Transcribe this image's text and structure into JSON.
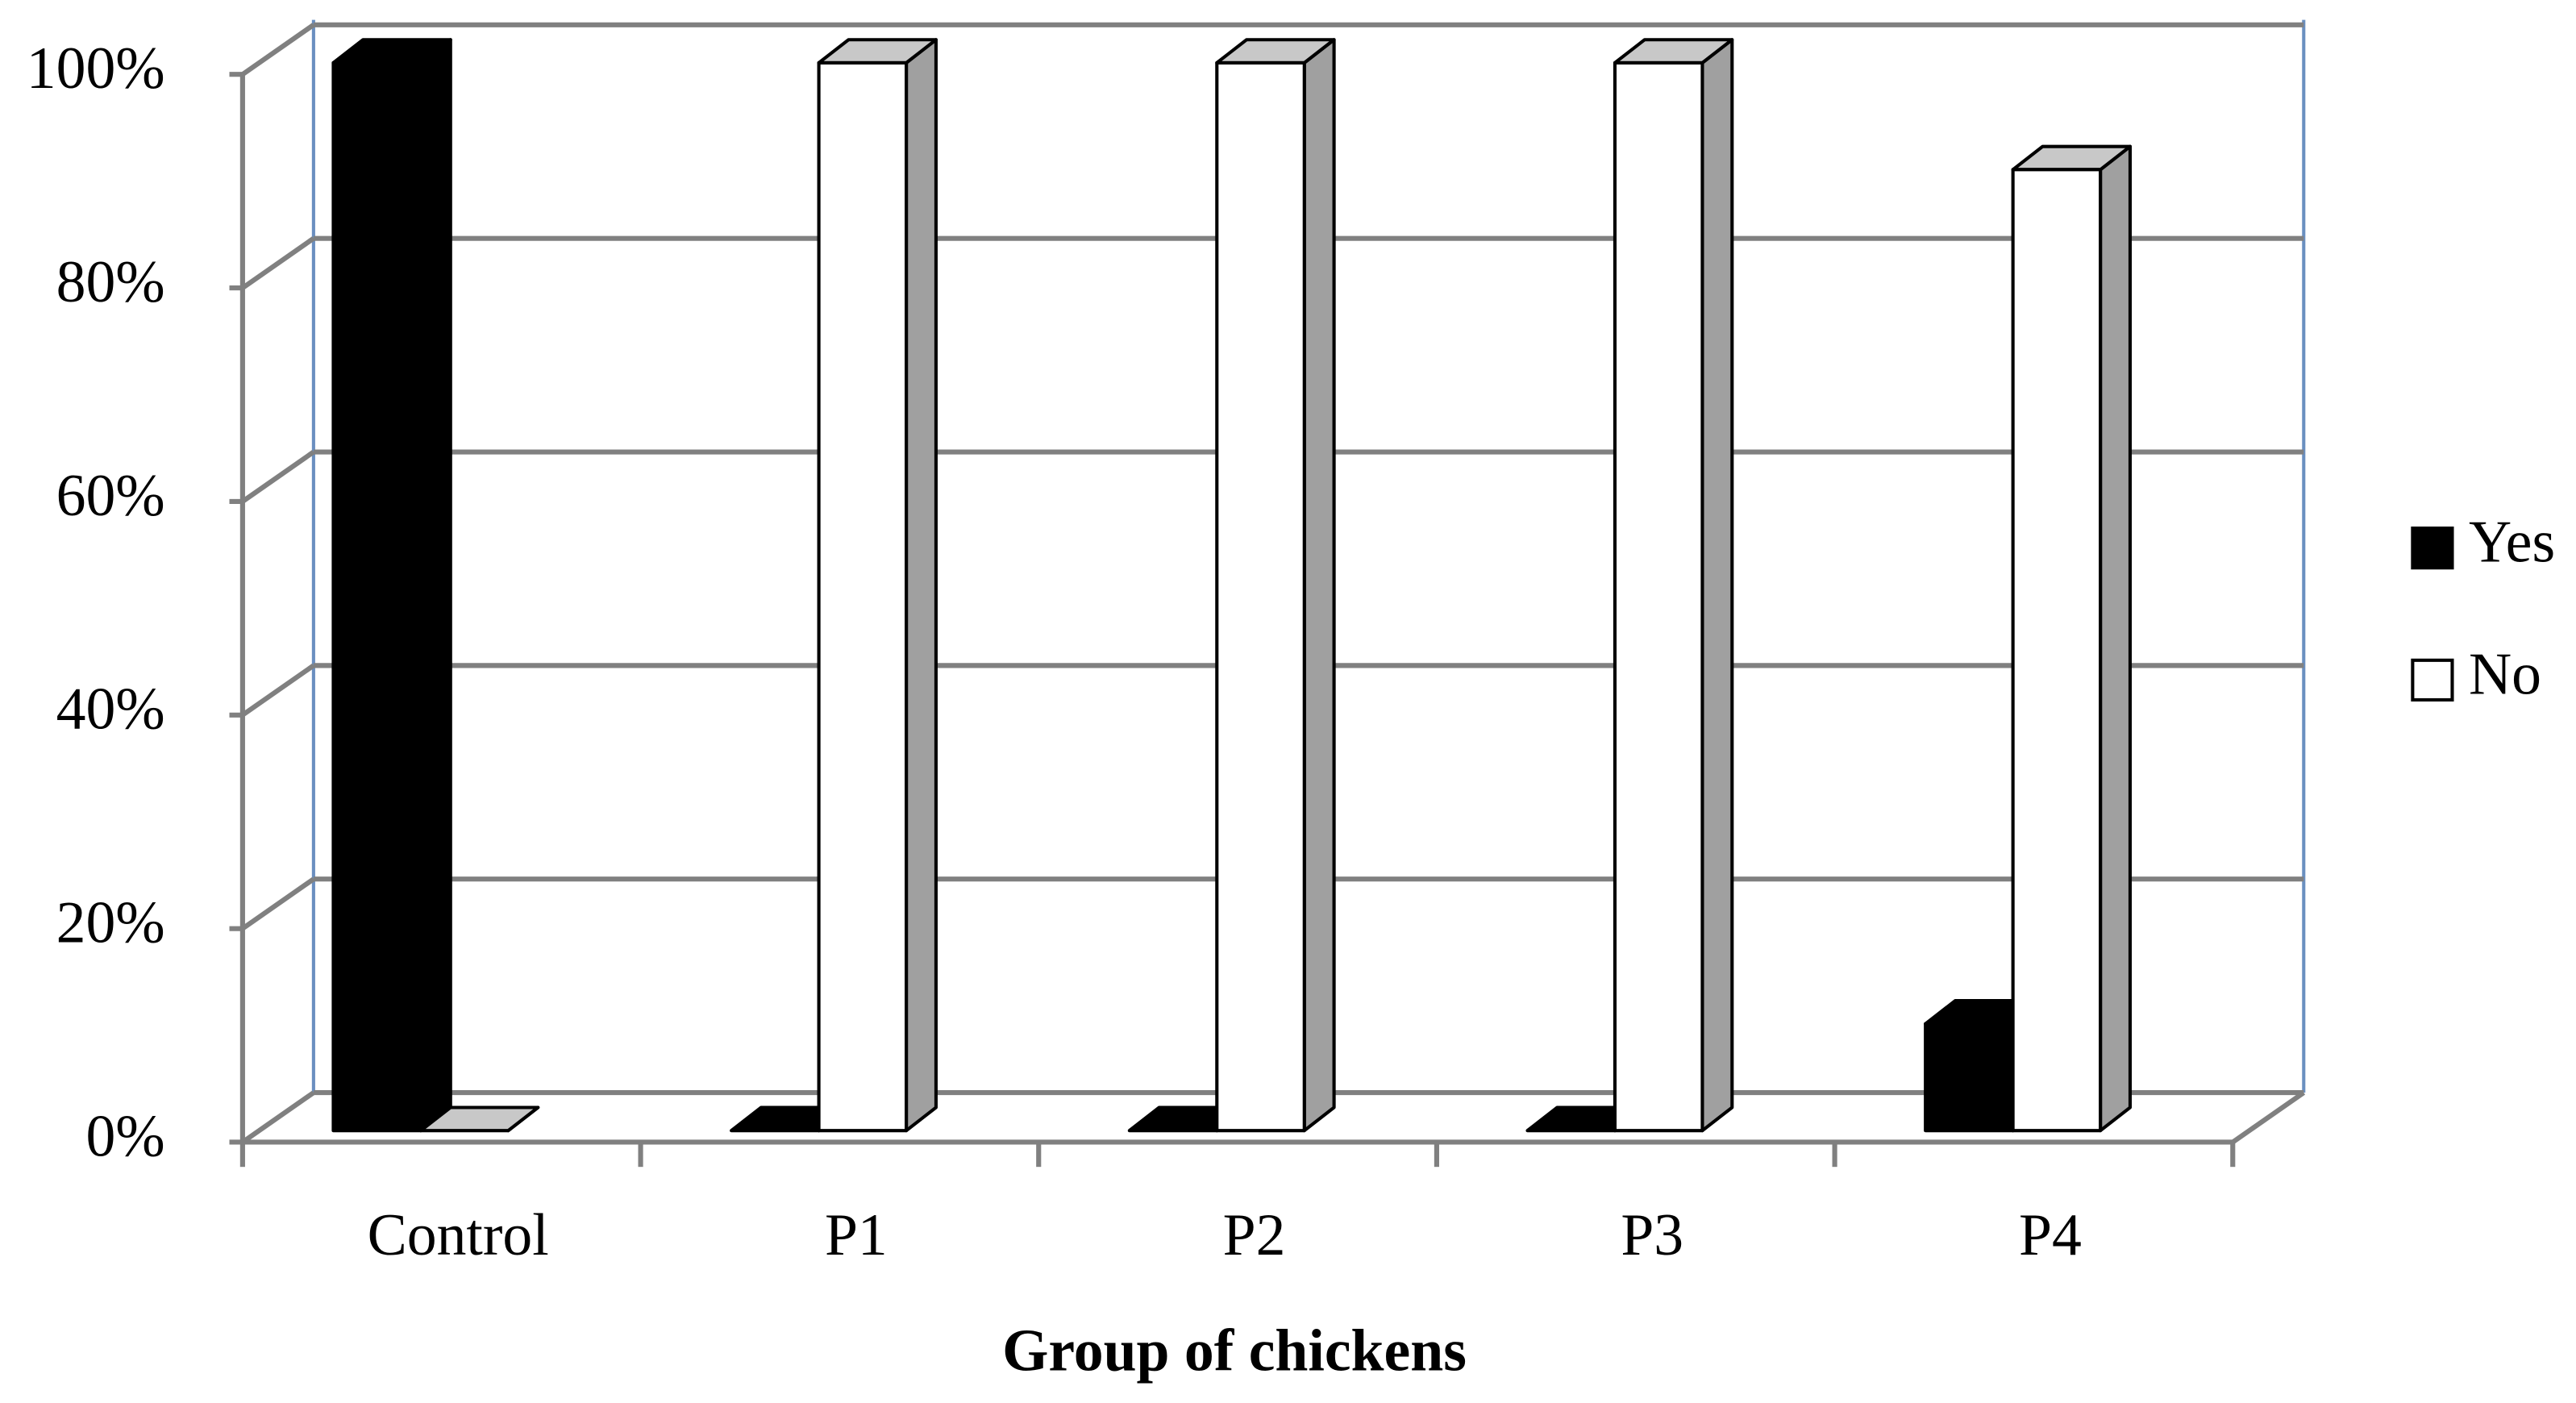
{
  "chart_data": {
    "type": "bar3d",
    "xlabel": "Group of chickens",
    "categories": [
      "Control",
      "P1",
      "P2",
      "P3",
      "P4"
    ],
    "series": [
      {
        "name": "Yes",
        "color": "#000000",
        "values": [
          100,
          0,
          0,
          0,
          10
        ]
      },
      {
        "name": "No",
        "color": "#ffffff",
        "values": [
          0,
          100,
          100,
          100,
          90
        ]
      }
    ],
    "ylim": [
      0,
      100
    ],
    "yticks": [
      {
        "value": 0,
        "label": "0%"
      },
      {
        "value": 20,
        "label": "20%"
      },
      {
        "value": 40,
        "label": "40%"
      },
      {
        "value": 60,
        "label": "60%"
      },
      {
        "value": 80,
        "label": "80%"
      },
      {
        "value": 100,
        "label": "100%"
      }
    ],
    "grid": true,
    "legend": "right"
  }
}
